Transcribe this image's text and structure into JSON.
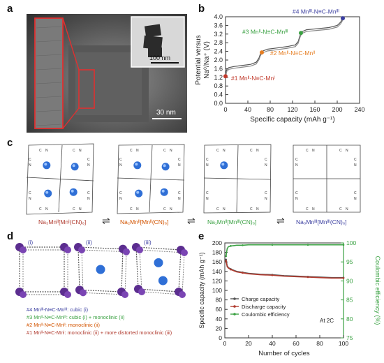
{
  "panels": {
    "a": "a",
    "b": "b",
    "c": "c",
    "d": "d",
    "e": "e"
  },
  "panel_a": {
    "scale_inset": "100 nm",
    "scale_main": "30 nm"
  },
  "panel_b": {
    "ylabel_line1": "Potential versus",
    "ylabel_line2": "Na⁰/Na⁺ (V)",
    "xlabel": "Specific capacity (mAh g⁻¹)",
    "ann1": "#1 Mnᴵᴵ-N≡C-Mnᴵ",
    "ann2": "#2 Mnᴵᴵ-N≡C-Mnᴵᴵ",
    "ann3": "#3 Mnᴵᴵ-N≡C-Mnᴵᴵᴵ",
    "ann4": "#4 Mnᴵᴵᴵ-N≡C-Mnᴵᴵᴵ",
    "marker_colors": [
      "#c0392b",
      "#e67e22",
      "#3aa142",
      "#3b3fa0"
    ]
  },
  "panel_c": {
    "formulas": [
      "Na₃Mnᴵᴵ[Mnᴵ(CN)₆]",
      "Na₂Mnᴵᴵ[Mnᴵᴵ(CN)₆]",
      "Na₁Mnᴵᴵ[Mnᴵᴵᴵ(CN)₆]",
      "Na₀Mnᴵᴵᴵ[Mnᴵᴵᴵ(CN)₆]"
    ],
    "formula_colors": [
      "#b03a2e",
      "#d35400",
      "#3aa142",
      "#3b3fa0"
    ],
    "arrow": "⇌",
    "atom_labels": [
      "C",
      "N"
    ]
  },
  "panel_d": {
    "roman": [
      "(i)",
      "(ii)",
      "(iii)"
    ],
    "legend": [
      {
        "text": "#4 Mnᴵᴵᴵ-N≡C-Mnᴵᴵᴵ: cubic (i)",
        "color": "#3b3fa0"
      },
      {
        "text": "#3 Mnᴵᴵ-N≡C-Mnᴵᴵᴵ: cubic (i) + monoclinic (ii)",
        "color": "#3aa142"
      },
      {
        "text": "#2 Mnᴵᴵ-N≡C-Mnᴵᴵ: monoclinic (ii)",
        "color": "#d35400"
      },
      {
        "text": "#1 Mnᴵᴵ-N≡C-Mnᴵ: monoclinic (ii) + more distorted monoclinic (iii)",
        "color": "#b03a2e"
      }
    ]
  },
  "panel_e": {
    "ylabel_left": "Specific capacity (mAh g⁻¹)",
    "ylabel_right": "Coulombic efficiency (%)",
    "xlabel": "Number of cycles",
    "rate": "At 2C",
    "legend": [
      "Charge capacity",
      "Discharge capacity",
      "Coulombic efficiency"
    ]
  },
  "chart_data": [
    {
      "type": "line",
      "title": "",
      "xlabel": "Specific capacity (mAh g⁻¹)",
      "ylabel": "Potential versus Na⁰/Na⁺ (V)",
      "xlim": [
        0,
        240
      ],
      "ylim": [
        0.0,
        4.0
      ],
      "xticks": [
        0,
        40,
        80,
        120,
        160,
        200,
        240
      ],
      "yticks": [
        0.0,
        0.4,
        0.8,
        1.2,
        1.6,
        2.0,
        2.4,
        2.8,
        3.2,
        3.6,
        4.0
      ],
      "series": [
        {
          "name": "",
          "x": [
            0,
            2,
            6,
            15,
            30,
            45,
            55,
            60,
            62,
            65,
            75,
            90,
            110,
            125,
            130,
            133,
            136,
            145,
            165,
            185,
            200,
            206,
            210
          ],
          "y": [
            1.25,
            1.55,
            1.65,
            1.7,
            1.75,
            1.8,
            1.9,
            2.1,
            2.25,
            2.4,
            2.5,
            2.55,
            2.62,
            2.7,
            2.85,
            3.1,
            3.3,
            3.4,
            3.45,
            3.5,
            3.6,
            3.75,
            3.93
          ]
        }
      ],
      "markers": [
        {
          "x": 0,
          "y": 1.25
        },
        {
          "x": 65,
          "y": 2.35
        },
        {
          "x": 135,
          "y": 3.25
        },
        {
          "x": 210,
          "y": 3.93
        }
      ]
    },
    {
      "type": "line",
      "title": "",
      "xlabel": "Number of cycles",
      "ylabel": "Specific capacity (mAh g⁻¹)",
      "ylabel_right": "Coulombic efficiency (%)",
      "xlim": [
        0,
        100
      ],
      "ylim": [
        0,
        200
      ],
      "ylim_right": [
        75,
        100
      ],
      "xticks": [
        0,
        20,
        40,
        60,
        80,
        100
      ],
      "yticks": [
        0,
        20,
        40,
        60,
        80,
        100,
        120,
        140,
        160,
        180,
        200
      ],
      "yticks_right": [
        75,
        80,
        85,
        90,
        95,
        100
      ],
      "series": [
        {
          "name": "Charge capacity",
          "axis": "left",
          "x": [
            1,
            2,
            3,
            5,
            8,
            10,
            15,
            20,
            30,
            40,
            50,
            60,
            70,
            80,
            90,
            100
          ],
          "y": [
            165,
            152,
            148,
            145,
            142,
            140,
            138,
            136,
            134,
            133,
            131,
            130,
            129,
            128,
            127,
            127
          ]
        },
        {
          "name": "Discharge capacity",
          "axis": "left",
          "x": [
            1,
            2,
            3,
            5,
            8,
            10,
            15,
            20,
            30,
            40,
            50,
            60,
            70,
            80,
            90,
            100
          ],
          "y": [
            162,
            150,
            147,
            144,
            141,
            139,
            137,
            135,
            133,
            132,
            130,
            129,
            128,
            127,
            126,
            126
          ]
        },
        {
          "name": "Coulombic efficiency",
          "axis": "right",
          "x": [
            1,
            2,
            3,
            5,
            8,
            10,
            15,
            20,
            30,
            40,
            50,
            60,
            70,
            80,
            90,
            100
          ],
          "y": [
            96.5,
            98.5,
            99.0,
            99.2,
            99.3,
            99.4,
            99.4,
            99.5,
            99.5,
            99.5,
            99.5,
            99.5,
            99.5,
            99.5,
            99.5,
            99.5
          ]
        }
      ]
    }
  ]
}
